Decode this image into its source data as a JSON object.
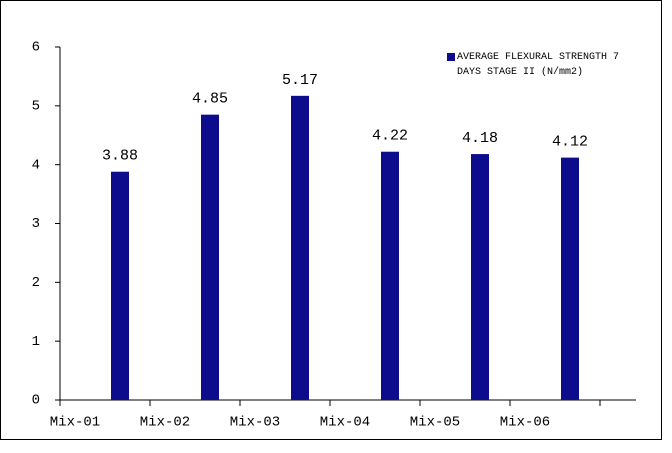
{
  "chart_data": {
    "type": "bar",
    "categories": [
      "Mix-01",
      "Mix-02",
      "Mix-03",
      "Mix-04",
      "Mix-05",
      "Mix-06"
    ],
    "series": [
      {
        "name": "AVERAGE FLEXURAL STRENGTH 7 DAYS STAGE II (N/mm2)",
        "color": "#0c0c8c",
        "values": [
          3.88,
          4.85,
          5.17,
          4.22,
          4.18,
          4.12
        ]
      }
    ],
    "ylim": [
      0,
      6
    ],
    "yticks": [
      0,
      1,
      2,
      3,
      4,
      5,
      6
    ],
    "grid": false,
    "legend": "top-right"
  }
}
